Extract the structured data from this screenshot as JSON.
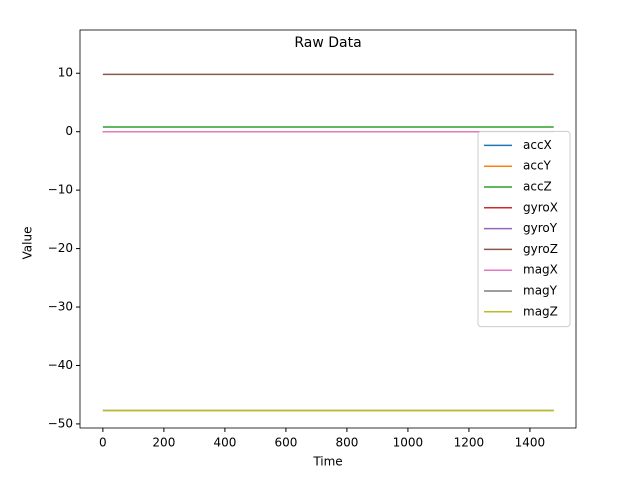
{
  "chart_data": {
    "type": "line",
    "title": "Raw Data",
    "xlabel": "Time",
    "ylabel": "Value",
    "x": [
      0,
      1478
    ],
    "series": [
      {
        "name": "accX",
        "color": "#1f77b4",
        "values": [
          0,
          0
        ]
      },
      {
        "name": "accY",
        "color": "#ff7f0e",
        "values": [
          0,
          0
        ]
      },
      {
        "name": "accZ",
        "color": "#2ca02c",
        "values": [
          0.8,
          0.8
        ]
      },
      {
        "name": "gyroX",
        "color": "#d62728",
        "values": [
          0,
          0
        ]
      },
      {
        "name": "gyroY",
        "color": "#9467bd",
        "values": [
          0,
          0
        ]
      },
      {
        "name": "gyroZ",
        "color": "#8c564b",
        "values": [
          9.8,
          9.8
        ]
      },
      {
        "name": "magX",
        "color": "#e377c2",
        "values": [
          0,
          0
        ]
      },
      {
        "name": "magY",
        "color": "#7f7f7f",
        "values": [
          -47.7,
          -47.7
        ]
      },
      {
        "name": "magZ",
        "color": "#bcbd22",
        "values": [
          -47.7,
          -47.7
        ]
      }
    ],
    "xlim": [
      -75,
      1551
    ],
    "ylim": [
      -50.7,
      17.4
    ],
    "xticks": [
      0,
      200,
      400,
      600,
      800,
      1000,
      1200,
      1400
    ],
    "yticks": [
      {
        "value": -50,
        "label": "−50"
      },
      {
        "value": -40,
        "label": "−40"
      },
      {
        "value": -30,
        "label": "−30"
      },
      {
        "value": -20,
        "label": "−20"
      },
      {
        "value": -10,
        "label": "−10"
      },
      0,
      10
    ],
    "legend": "center right"
  }
}
